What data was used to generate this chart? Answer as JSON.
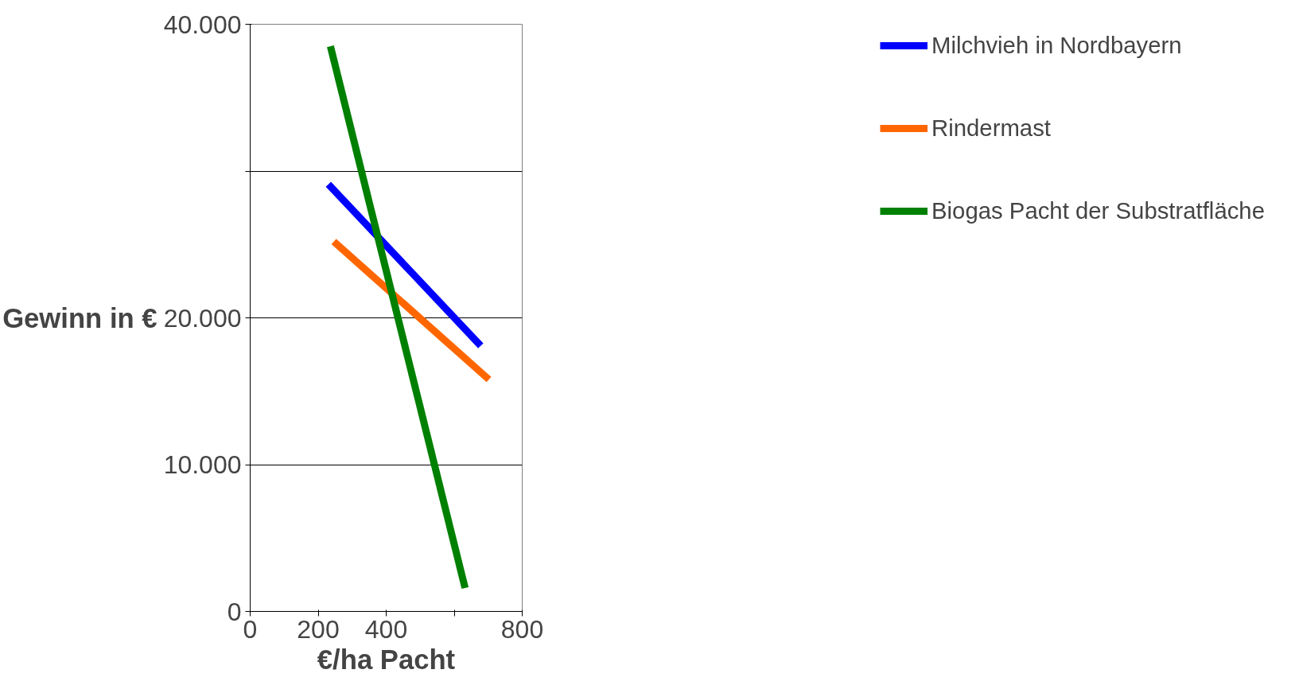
{
  "chart_data": {
    "type": "line",
    "xlabel": "€/ha Pacht",
    "ylabel": "Gewinn in €",
    "xlim": [
      0,
      800
    ],
    "xticks": [
      0,
      200,
      400,
      {
        "value": 600,
        "label": null
      },
      800
    ],
    "ylim": [
      0,
      40000
    ],
    "yticks": [
      {
        "value": 0,
        "label": "0"
      },
      {
        "value": 10000,
        "label": "10.000"
      },
      {
        "value": 20000,
        "label": "20.000"
      },
      {
        "value": 30000,
        "label": null
      },
      {
        "value": 40000,
        "label": "40.000"
      }
    ],
    "grid": "y",
    "legend": "right",
    "line_style": "solid",
    "marker": "none",
    "series": [
      {
        "name": "Milchvieh in Nordbayern",
        "color": "#0000ff",
        "x": [
          230,
          678
        ],
        "values": [
          29100,
          18100
        ]
      },
      {
        "name": "Rindermast",
        "color": "#ff6600",
        "x": [
          246,
          702
        ],
        "values": [
          25200,
          15800
        ]
      },
      {
        "name": "Biogas Pacht der Substratfläche",
        "color": "#008000",
        "x": [
          236,
          632
        ],
        "values": [
          38500,
          1600
        ]
      }
    ]
  }
}
